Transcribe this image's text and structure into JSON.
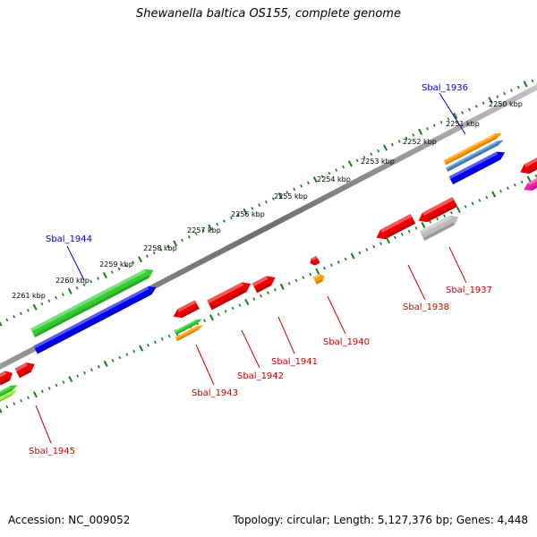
{
  "title": "Shewanella baltica OS155, complete genome",
  "footer": {
    "accession": "Accession: NC_009052",
    "summary": "Topology: circular; Length: 5,127,376 bp; Genes: 4,448"
  },
  "kbp_labels": [
    "2250 kbp",
    "2251 kbp",
    "2252 kbp",
    "2253 kbp",
    "2254 kbp",
    "2255 kbp",
    "2256 kbp",
    "2257 kbp",
    "2258 kbp",
    "2259 kbp",
    "2260 kbp",
    "2261 kbp"
  ],
  "gene_labels": [
    {
      "name": "Sbal_1936",
      "color": "#0000cc"
    },
    {
      "name": "Sbal_1937",
      "color": "#cc0000"
    },
    {
      "name": "Sbal_1938",
      "color": "#cc0000"
    },
    {
      "name": "Sbal_1940",
      "color": "#cc0000"
    },
    {
      "name": "Sbal_1941",
      "color": "#cc0000"
    },
    {
      "name": "Sbal_1942",
      "color": "#cc0000"
    },
    {
      "name": "Sbal_1943",
      "color": "#cc0000"
    },
    {
      "name": "Sbal_1944",
      "color": "#0000cc"
    },
    {
      "name": "Sbal_1945",
      "color": "#cc0000"
    }
  ],
  "colors": {
    "backbone": "#808080",
    "ticks": "#1a7a1a",
    "red": "#ee0000",
    "green": "#33cc33",
    "blue": "#0000ee",
    "orange": "#ff9900",
    "steelblue": "#4a86c8",
    "grey": "#bbbbbb",
    "magenta": "#ee22aa",
    "lime": "#99ee33"
  }
}
